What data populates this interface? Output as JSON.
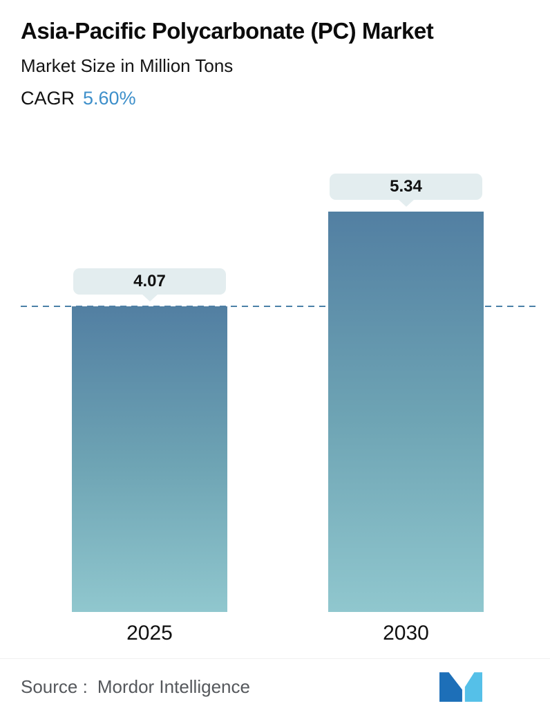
{
  "header": {
    "title": "Asia-Pacific Polycarbonate (PC) Market",
    "subtitle": "Market Size in Million Tons",
    "cagr_label": "CAGR",
    "cagr_value": "5.60%"
  },
  "chart_data": {
    "type": "bar",
    "title": "Asia-Pacific Polycarbonate (PC) Market",
    "subtitle": "Market Size in Million Tons",
    "unit": "Million Tons",
    "categories": [
      "2025",
      "2030"
    ],
    "values": [
      4.07,
      5.34
    ],
    "value_labels": [
      "4.07",
      "5.34"
    ],
    "cagr_percent": 5.6,
    "reference_line": {
      "value": 4.07,
      "style": "dashed",
      "color": "#4a80a8"
    },
    "ylim": [
      0,
      6
    ],
    "grid": false,
    "legend": "none",
    "bar_color_top": "#527fa2",
    "bar_color_bottom": "#90c7ce",
    "label_pill_color": "#e3edef"
  },
  "footer": {
    "source_label": "Source :",
    "source_value": "Mordor Intelligence",
    "logo_name": "mordor-intelligence-logo",
    "logo_colors": [
      "#1d6fb8",
      "#55c0e8"
    ]
  },
  "colors": {
    "accent_blue": "#3d8fca",
    "text": "#111111",
    "muted_text": "#55585c",
    "reference_line": "#4a80a8"
  }
}
